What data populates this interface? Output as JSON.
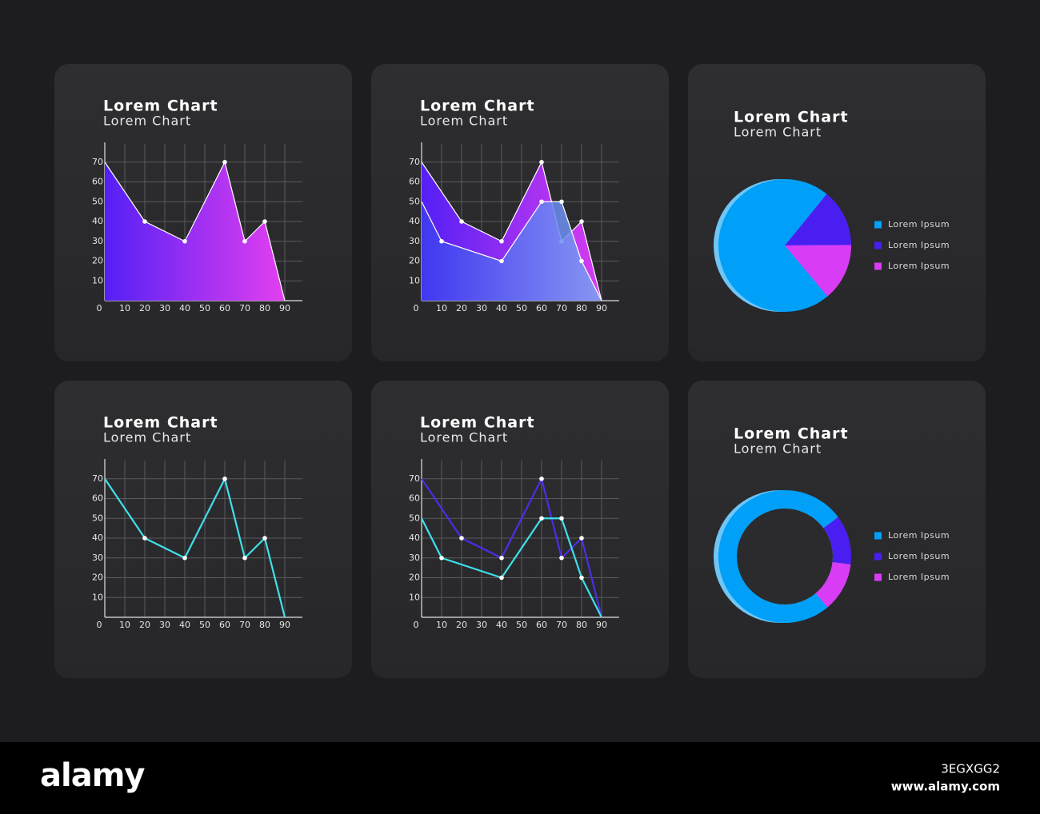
{
  "chart_data": [
    {
      "type": "area",
      "title": "Lorem Chart",
      "subtitle": "Lorem Chart",
      "xlim": [
        0,
        100
      ],
      "ylim": [
        0,
        80
      ],
      "xticks": [
        0,
        10,
        20,
        30,
        40,
        50,
        60,
        70,
        80,
        90
      ],
      "yticks": [
        10,
        20,
        30,
        40,
        50,
        60,
        70
      ],
      "grid": true,
      "markers": true,
      "series": [
        {
          "x": [
            0,
            20,
            40,
            60,
            70,
            80,
            90
          ],
          "values": [
            70,
            40,
            30,
            70,
            30,
            40,
            0
          ],
          "colors": [
            "#5420f5",
            "#e33ff0"
          ]
        }
      ]
    },
    {
      "type": "area",
      "title": "Lorem Chart",
      "subtitle": "Lorem Chart",
      "xlim": [
        0,
        100
      ],
      "ylim": [
        0,
        80
      ],
      "xticks": [
        0,
        10,
        20,
        30,
        40,
        50,
        60,
        70,
        80,
        90
      ],
      "yticks": [
        10,
        20,
        30,
        40,
        50,
        60,
        70
      ],
      "grid": true,
      "markers": true,
      "series": [
        {
          "x": [
            0,
            20,
            40,
            60,
            70,
            80,
            90
          ],
          "values": [
            70,
            40,
            30,
            70,
            30,
            40,
            0
          ],
          "colors": [
            "#5420f5",
            "#d63cf0"
          ]
        },
        {
          "x": [
            0,
            10,
            40,
            60,
            70,
            80,
            90
          ],
          "values": [
            50,
            30,
            20,
            50,
            50,
            20,
            0
          ],
          "colors": [
            "#3c3cf0",
            "#7aa6f2"
          ]
        }
      ]
    },
    {
      "type": "pie",
      "title": "Lorem Chart",
      "subtitle": "Lorem Chart",
      "categories": [
        "Lorem Ipsum",
        "Lorem Ipsum",
        "Lorem Ipsum"
      ],
      "values": [
        72,
        14,
        14
      ],
      "colors": [
        "#00a0f8",
        "#4a1ef0",
        "#d83cf5"
      ],
      "edge_color": "#6fc6f5"
    },
    {
      "type": "line",
      "title": "Lorem Chart",
      "subtitle": "Lorem Chart",
      "xlim": [
        0,
        100
      ],
      "ylim": [
        0,
        80
      ],
      "xticks": [
        0,
        10,
        20,
        30,
        40,
        50,
        60,
        70,
        80,
        90
      ],
      "yticks": [
        10,
        20,
        30,
        40,
        50,
        60,
        70
      ],
      "grid": true,
      "markers": true,
      "series": [
        {
          "x": [
            0,
            20,
            40,
            60,
            70,
            80,
            90
          ],
          "values": [
            70,
            40,
            30,
            70,
            30,
            40,
            0
          ],
          "color": "#3fe0ea"
        }
      ]
    },
    {
      "type": "line",
      "title": "Lorem Chart",
      "subtitle": "Lorem Chart",
      "xlim": [
        0,
        100
      ],
      "ylim": [
        0,
        80
      ],
      "xticks": [
        0,
        10,
        20,
        30,
        40,
        50,
        60,
        70,
        80,
        90
      ],
      "yticks": [
        10,
        20,
        30,
        40,
        50,
        60,
        70
      ],
      "grid": true,
      "markers": true,
      "series": [
        {
          "x": [
            0,
            20,
            40,
            60,
            70,
            80,
            90
          ],
          "values": [
            70,
            40,
            30,
            70,
            30,
            40,
            0
          ],
          "color": "#4b2ee6"
        },
        {
          "x": [
            0,
            10,
            40,
            60,
            70,
            80,
            90
          ],
          "values": [
            50,
            30,
            20,
            50,
            50,
            20,
            0
          ],
          "color": "#3fe0ea"
        }
      ]
    },
    {
      "type": "donut",
      "title": "Lorem Chart",
      "subtitle": "Lorem Chart",
      "categories": [
        "Lorem Ipsum",
        "Lorem Ipsum",
        "Lorem Ipsum"
      ],
      "values": [
        76,
        12,
        12
      ],
      "colors": [
        "#00a0f8",
        "#4a1ef0",
        "#d83cf5"
      ],
      "edge_color": "#6fc6f5"
    }
  ],
  "footer": {
    "logo": "alamy",
    "image_id": "3EGXGG2",
    "url": "www.alamy.com"
  }
}
